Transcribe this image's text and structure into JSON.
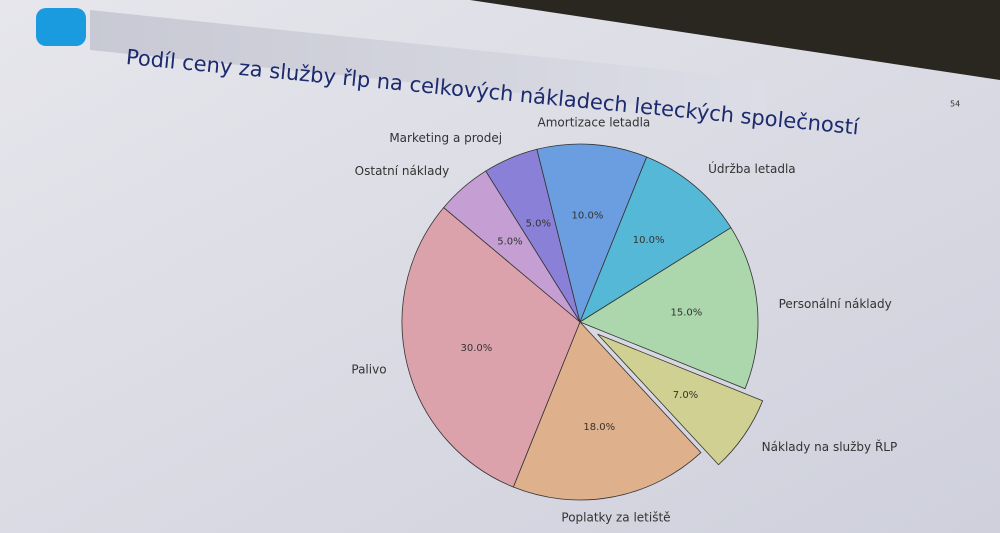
{
  "slide_number": "54",
  "chart_data": {
    "type": "pie",
    "title": "Podíl ceny za služby řlp na celkových nákladech leteckých společností",
    "categories": [
      "Marketing a prodej",
      "Amortizace letadla",
      "Údržba letadla",
      "Personální náklady",
      "Náklady na služby ŘLP",
      "Poplatky za letiště",
      "Palivo",
      "Ostatní náklady"
    ],
    "values": [
      5,
      10,
      10,
      15,
      7,
      18,
      30,
      5
    ],
    "value_labels": [
      "5.0%",
      "10.0%",
      "10.0%",
      "15.0%",
      "7.0%",
      "18.0%",
      "30.0%",
      "5.0%"
    ],
    "colors": [
      "#8a80d8",
      "#6a9ee0",
      "#55b8d6",
      "#acd6ab",
      "#cfd091",
      "#dfb08c",
      "#dba2ab",
      "#c59fd4"
    ],
    "explode": [
      0,
      0,
      0,
      0,
      0.12,
      0,
      0,
      0
    ]
  }
}
